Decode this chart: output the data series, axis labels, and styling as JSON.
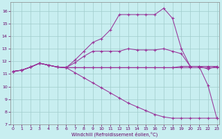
{
  "background_color": "#c8eef0",
  "line_color": "#993399",
  "grid_color": "#a0cccc",
  "xlabel": "Windchill (Refroidissement éolien,°C)",
  "xlim": [
    -0.3,
    23.3
  ],
  "ylim": [
    7,
    16.7
  ],
  "yticks": [
    7,
    8,
    9,
    10,
    11,
    12,
    13,
    14,
    15,
    16
  ],
  "xticks": [
    0,
    1,
    2,
    3,
    4,
    5,
    6,
    7,
    8,
    9,
    10,
    11,
    12,
    13,
    14,
    15,
    16,
    17,
    18,
    19,
    20,
    21,
    22,
    23
  ],
  "line_flat": [
    11.2,
    11.3,
    11.55,
    11.85,
    11.7,
    11.55,
    11.5,
    11.5,
    11.5,
    11.5,
    11.5,
    11.5,
    11.5,
    11.5,
    11.5,
    11.5,
    11.5,
    11.5,
    11.5,
    11.5,
    11.5,
    11.5,
    11.5,
    11.5
  ],
  "line_mid": [
    11.2,
    11.3,
    11.55,
    11.85,
    11.7,
    11.55,
    11.5,
    11.5,
    11.5,
    11.5,
    11.5,
    11.5,
    11.5,
    11.5,
    11.5,
    11.5,
    11.5,
    11.5,
    11.5,
    11.6,
    11.6,
    11.6,
    11.4,
    11.6
  ],
  "line_high": [
    11.2,
    11.3,
    11.55,
    11.85,
    11.7,
    11.55,
    11.5,
    11.9,
    12.4,
    12.8,
    12.8,
    12.8,
    12.8,
    13.0,
    12.9,
    12.9,
    12.9,
    13.0,
    12.8,
    12.6,
    11.6,
    11.6,
    10.1,
    7.5
  ],
  "line_peak": [
    11.2,
    11.3,
    11.55,
    11.85,
    11.7,
    11.55,
    11.5,
    12.1,
    12.8,
    13.5,
    13.8,
    14.5,
    15.7,
    15.7,
    15.7,
    15.7,
    15.7,
    16.2,
    15.4,
    13.0,
    11.6,
    11.6,
    11.6,
    11.6
  ],
  "line_drop": [
    11.2,
    11.3,
    11.55,
    11.85,
    11.7,
    11.55,
    11.5,
    11.1,
    10.7,
    10.3,
    9.9,
    9.5,
    9.1,
    8.7,
    8.4,
    8.1,
    7.8,
    7.6,
    7.5,
    7.5,
    7.5,
    7.5,
    7.5,
    7.5
  ]
}
